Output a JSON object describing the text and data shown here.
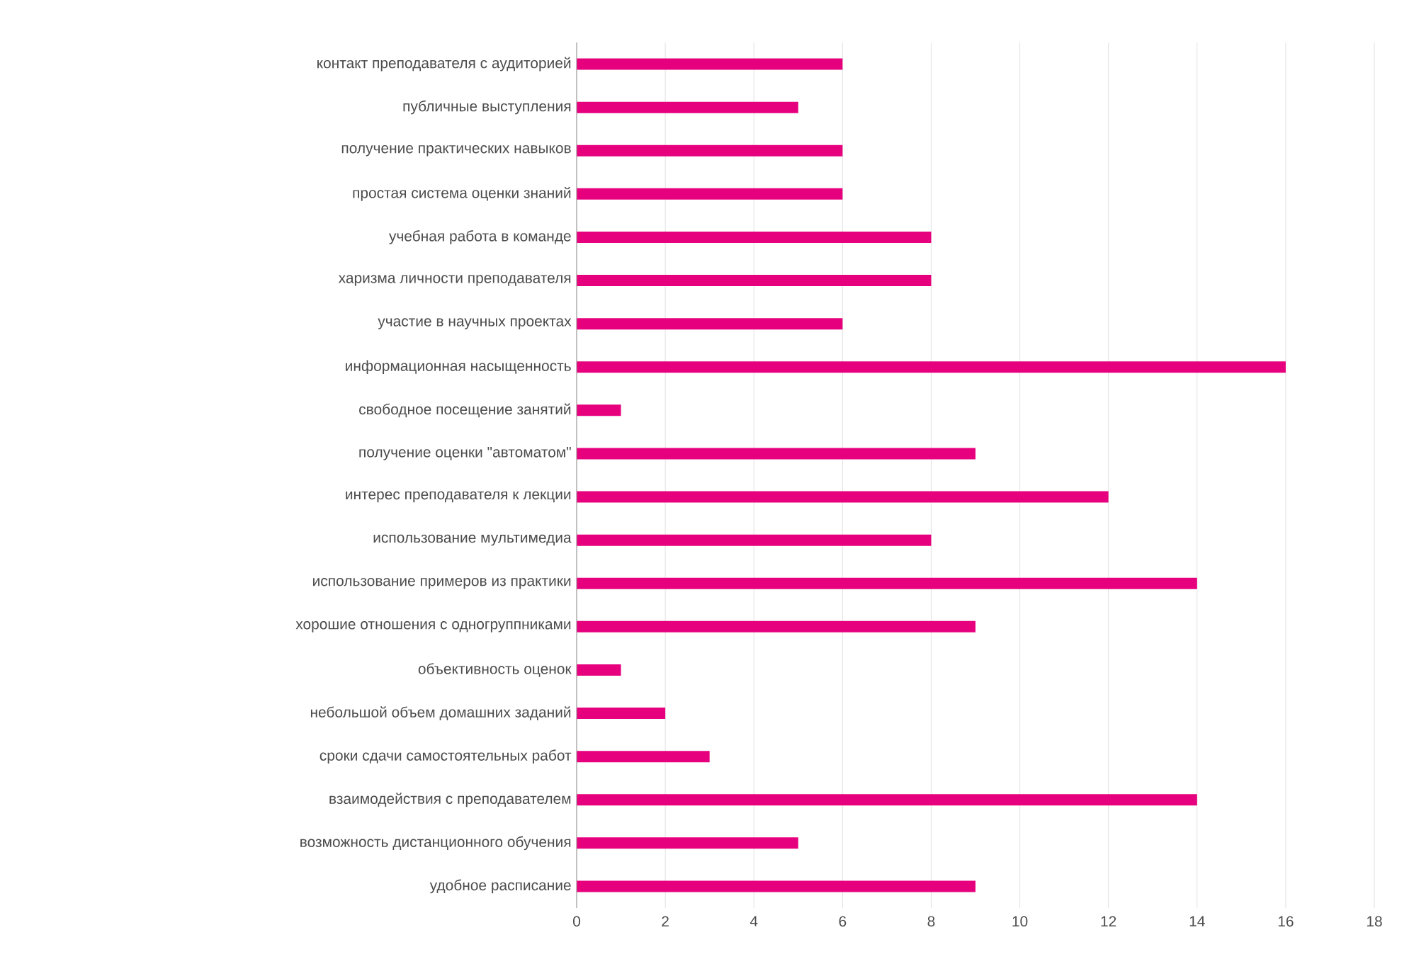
{
  "chart_data": {
    "type": "bar",
    "orientation": "horizontal",
    "color": "#e6007e",
    "grid": "x",
    "xlim": [
      0,
      18
    ],
    "xticks": [
      0,
      2,
      4,
      6,
      8,
      10,
      12,
      14,
      16,
      18
    ],
    "categories": [
      "контакт преподавателя с аудиторией",
      "публичные выступления",
      "получение практических навыков",
      "простая система оценки знаний",
      "учебная работа в команде",
      "харизма личности преподавателя",
      "участие в научных проектах",
      "информационная насыщенность",
      "свободное посещение занятий",
      "получение оценки \"автоматом\"",
      "интерес преподавателя к лекции",
      "использование мультимедиа",
      "использование примеров из практики",
      "хорошие отношения с одногруппниками",
      "объективность оценок",
      "небольшой объем домашних заданий",
      "сроки сдачи самостоятельных работ",
      "взаимодействия с преподавателем",
      "возможность дистанционного обучения",
      "удобное расписание"
    ],
    "values": [
      6,
      5,
      6,
      6,
      8,
      8,
      6,
      16,
      1,
      9,
      12,
      8,
      14,
      9,
      1,
      2,
      3,
      14,
      5,
      9
    ]
  }
}
